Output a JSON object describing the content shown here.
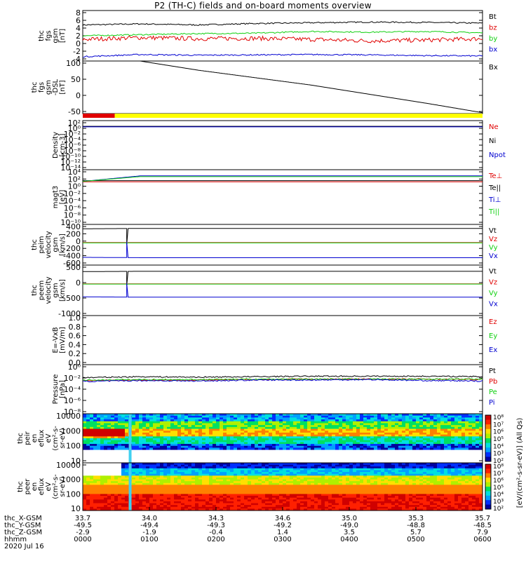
{
  "title": "P2 (TH-C) fields and on-board moments overview",
  "colors": {
    "black": "#000000",
    "red": "#e00000",
    "green": "#10d010",
    "blue": "#0000d0",
    "yellow": "#ffff00",
    "cyan": "#00c8ff"
  },
  "chart_data": [
    {
      "type": "line",
      "id": "fgs",
      "ylabel": "thc\nfgs\ngsm\n[nT]",
      "yticks": [
        "8",
        "6",
        "4",
        "2",
        "0",
        "-2",
        "-4"
      ],
      "ylim": [
        -5,
        9
      ],
      "series": [
        {
          "name": "Bt",
          "color": "#000000",
          "values": [
            5.0,
            5.3,
            5.0,
            5.4,
            5.6,
            5.8,
            5.7,
            5.5
          ]
        },
        {
          "name": "bz",
          "color": "#e00000",
          "values": [
            1.0,
            1.5,
            1.2,
            1.3,
            1.0,
            0.6,
            0.8,
            1.2
          ]
        },
        {
          "name": "by",
          "color": "#10d010",
          "values": [
            2.0,
            2.3,
            2.6,
            2.7,
            3.2,
            3.0,
            3.2,
            2.8
          ]
        },
        {
          "name": "bx",
          "color": "#0000d0",
          "values": [
            -3.8,
            -3.2,
            -3.4,
            -3.3,
            -3.2,
            -3.3,
            -3.5,
            -3.6
          ]
        }
      ]
    },
    {
      "type": "line",
      "id": "fgs-dsl",
      "ylabel": "thc\nfgs\ngsm\n-DSL\n[nT]",
      "yticks": [
        "100",
        "50",
        "0",
        "-50"
      ],
      "ylim": [
        -75,
        100
      ],
      "series": [
        {
          "name": "Bx",
          "color": "#000000",
          "values": [
            null,
            100,
            70,
            45,
            20,
            -10,
            -40,
            -72
          ]
        }
      ]
    },
    {
      "type": "line",
      "id": "density",
      "ylabel": "Density\n[cm-3]",
      "yticks": [
        "10²",
        "10⁰",
        "10⁻²",
        "10⁻⁴",
        "10⁻⁶",
        "10⁻⁸",
        "10⁻¹⁰",
        "10⁻¹²",
        "10⁻¹⁴"
      ],
      "ylim": [
        -14.5,
        2
      ],
      "series": [
        {
          "name": "Ne",
          "color": "#e00000",
          "values": [
            0,
            0,
            0,
            0,
            0,
            0,
            0,
            0
          ]
        },
        {
          "name": "Ni",
          "color": "#000000",
          "values": [
            0.1,
            0.1,
            0.1,
            0.1,
            0.1,
            0.1,
            0.1,
            0.1
          ]
        },
        {
          "name": "Npot",
          "color": "#0000d0",
          "values": [
            -0.1,
            -0.1,
            -0.1,
            -0.1,
            -0.1,
            -0.1,
            -0.1,
            -0.1
          ]
        }
      ]
    },
    {
      "type": "line",
      "id": "temperature",
      "ylabel": "magt3\n[eV]",
      "yticks": [
        "10⁴",
        "10²",
        "10⁰",
        "10⁻²",
        "10⁻⁴",
        "10⁻⁶",
        "10⁻⁸",
        "10⁻¹⁰"
      ],
      "ylim": [
        -10.5,
        4.5
      ],
      "series": [
        {
          "name": "Te⊥",
          "color": "#e00000",
          "values": [
            1.2,
            1.2,
            1.2,
            1.2,
            1.2,
            1.2,
            1.2,
            1.2
          ]
        },
        {
          "name": "Te||",
          "color": "#000000",
          "values": [
            1.5,
            1.5,
            1.5,
            1.5,
            1.5,
            1.5,
            1.5,
            1.5
          ]
        },
        {
          "name": "Ti⊥",
          "color": "#0000d0",
          "values": [
            1.3,
            2.8,
            2.8,
            2.8,
            2.8,
            2.8,
            2.8,
            2.8
          ]
        },
        {
          "name": "Ti||",
          "color": "#10d010",
          "values": [
            1.3,
            2.6,
            2.6,
            2.6,
            2.6,
            2.6,
            2.6,
            2.6
          ]
        }
      ]
    },
    {
      "type": "line",
      "id": "peim",
      "ylabel": "thc\npeim\nvelocity\ngsm\n[km/s]",
      "yticks": [
        "400",
        "200",
        "0",
        "-200",
        "-400",
        "-600"
      ],
      "ylim": [
        -650,
        560
      ],
      "series": [
        {
          "name": "Vt",
          "color": "#000000",
          "values": [
            430,
            440,
            440,
            440,
            440,
            440,
            440,
            440
          ]
        },
        {
          "name": "Vz",
          "color": "#e00000",
          "values": [
            20,
            20,
            20,
            20,
            20,
            20,
            20,
            20
          ]
        },
        {
          "name": "Vy",
          "color": "#10d010",
          "values": [
            10,
            10,
            10,
            10,
            10,
            10,
            10,
            10
          ]
        },
        {
          "name": "Vx",
          "color": "#0000d0",
          "values": [
            -420,
            -430,
            -430,
            -430,
            -430,
            -430,
            -430,
            -430
          ]
        }
      ]
    },
    {
      "type": "line",
      "id": "peem",
      "ylabel": "thc\npeem\nvelocity\ngsm\n[km/s]",
      "yticks": [
        "500",
        "0",
        "-500",
        "-1000"
      ],
      "ylim": [
        -1050,
        650
      ],
      "series": [
        {
          "name": "Vt",
          "color": "#000000",
          "values": [
            430,
            440,
            440,
            440,
            440,
            440,
            440,
            440
          ]
        },
        {
          "name": "Vz",
          "color": "#e00000",
          "values": [
            20,
            20,
            20,
            20,
            20,
            20,
            20,
            20
          ]
        },
        {
          "name": "Vy",
          "color": "#10d010",
          "values": [
            10,
            10,
            10,
            10,
            10,
            10,
            10,
            10
          ]
        },
        {
          "name": "Vx",
          "color": "#0000d0",
          "values": [
            -420,
            -430,
            -430,
            -430,
            -430,
            -430,
            -430,
            -430
          ]
        }
      ]
    },
    {
      "type": "line",
      "id": "efield",
      "ylabel": "E=-VxB\n[mV/m]",
      "yticks": [
        "1.0",
        "0.8",
        "0.6",
        "0.4",
        "0.2",
        "0.0"
      ],
      "ylim": [
        0,
        1.05
      ],
      "series": [
        {
          "name": "Ez",
          "color": "#e00000",
          "values": []
        },
        {
          "name": "Ey",
          "color": "#10d010",
          "values": []
        },
        {
          "name": "Ex",
          "color": "#0000d0",
          "values": []
        }
      ]
    },
    {
      "type": "line",
      "id": "pressure",
      "ylabel": "Pressure\n[nPa]",
      "yticks": [
        "10⁰",
        "10⁻²",
        "10⁻⁴",
        "10⁻⁶",
        "10⁻⁸"
      ],
      "ylim": [
        -9,
        1.2
      ],
      "series": [
        {
          "name": "Pt",
          "color": "#000000",
          "values": [
            -1.5,
            -1.3,
            -1.4,
            -1.3,
            -1.2,
            -1.2,
            -1.2,
            -1.3
          ]
        },
        {
          "name": "Pb",
          "color": "#e00000",
          "values": [
            -2.1,
            -2.0,
            -2.0,
            -1.9,
            -1.8,
            -1.8,
            -1.8,
            -1.9
          ]
        },
        {
          "name": "Pe",
          "color": "#10d010",
          "values": [
            -2.0,
            -1.9,
            -1.9,
            -1.8,
            -1.8,
            -1.8,
            -1.8,
            -1.8
          ]
        },
        {
          "name": "Pi",
          "color": "#0000d0",
          "values": [
            -2.3,
            -2.1,
            -2.2,
            -2.0,
            -2.0,
            -1.9,
            -2.1,
            -2.2
          ]
        }
      ]
    },
    {
      "type": "heatmap",
      "id": "peir",
      "ylabel": "thc\npeir\nen\neflux\neV\n(cm²-s-\nsr-eV)",
      "yticks": [
        "10000",
        "1000",
        "100",
        "10"
      ],
      "ylim": [
        5,
        20000
      ],
      "log": true
    },
    {
      "type": "heatmap",
      "id": "peer",
      "ylabel": "thc\npeer\nen\neflux\neV\n(cm²-s-\nsr-eV)",
      "yticks": [
        "10000",
        "1000",
        "100",
        "10"
      ],
      "ylim": [
        5,
        20000
      ],
      "log": true
    }
  ],
  "colorbar": {
    "label": "[eV/(cm²-s-sr-eV)] (All Qs)",
    "ticks": [
      "10⁸",
      "10⁷",
      "10⁶",
      "10⁵",
      "10⁴",
      "10³",
      "10²"
    ]
  },
  "x_axis": {
    "row_labels": [
      "thc_X-GSM",
      "thc_Y-GSM",
      "thc_Z-GSM",
      "hhmm",
      "2020 Jul 16"
    ],
    "columns": [
      [
        "33.7",
        "-49.5",
        "-2.9",
        "0000"
      ],
      [
        "34.0",
        "-49.4",
        "-1.9",
        "0100"
      ],
      [
        "34.3",
        "-49.3",
        "-0.4",
        "0200"
      ],
      [
        "34.6",
        "-49.2",
        "1.4",
        "0300"
      ],
      [
        "35.0",
        "-49.0",
        "3.5",
        "0400"
      ],
      [
        "35.3",
        "-48.8",
        "5.7",
        "0500"
      ],
      [
        "35.7",
        "-48.5",
        "7.9",
        "0600"
      ]
    ]
  },
  "mode_bar": {
    "segments": [
      {
        "color": "#e00000",
        "from_hour": 0,
        "to_hour": 0.48
      },
      {
        "color": "#ffff00",
        "from_hour": 0.48,
        "to_hour": 6
      }
    ]
  }
}
